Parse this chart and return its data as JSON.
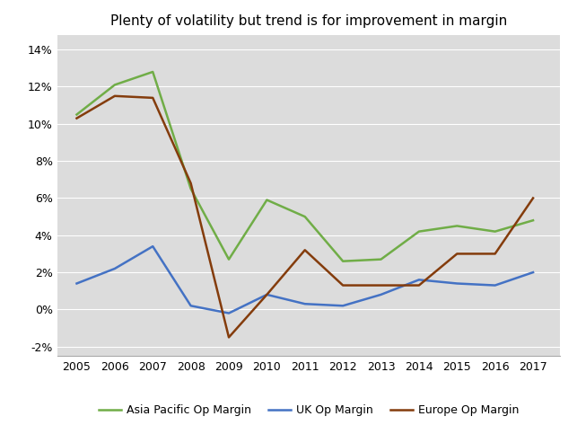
{
  "title": "Plenty of volatility but trend is for improvement in margin",
  "years": [
    2005,
    2006,
    2007,
    2008,
    2009,
    2010,
    2011,
    2012,
    2013,
    2014,
    2015,
    2016,
    2017
  ],
  "asia_pacific": [
    0.105,
    0.121,
    0.128,
    0.065,
    0.027,
    0.059,
    0.05,
    0.026,
    0.027,
    0.042,
    0.045,
    0.042,
    0.048
  ],
  "uk": [
    0.014,
    0.022,
    0.034,
    0.002,
    -0.002,
    0.008,
    0.003,
    0.002,
    0.008,
    0.016,
    0.014,
    0.013,
    0.02
  ],
  "europe": [
    0.103,
    0.115,
    0.114,
    0.068,
    -0.015,
    0.008,
    0.032,
    0.013,
    0.013,
    0.013,
    0.03,
    0.03,
    0.06
  ],
  "asia_color": "#70AD47",
  "uk_color": "#4472C4",
  "europe_color": "#843C0C",
  "ylim_min": -0.025,
  "ylim_max": 0.148,
  "yticks": [
    -0.02,
    0.0,
    0.02,
    0.04,
    0.06,
    0.08,
    0.1,
    0.12,
    0.14
  ],
  "legend_labels": [
    "Asia Pacific Op Margin",
    "UK Op Margin",
    "Europe Op Margin"
  ],
  "figure_bg": "#FFFFFF",
  "plot_bg": "#DCDCDC",
  "grid_color": "#FFFFFF",
  "title_fontsize": 11,
  "tick_fontsize": 9,
  "legend_fontsize": 9
}
